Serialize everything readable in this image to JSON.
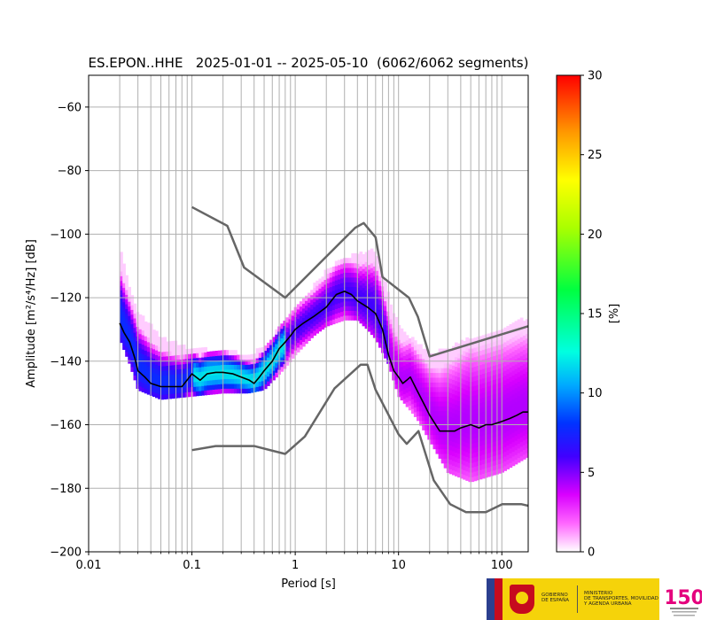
{
  "chart_data": {
    "type": "heatmap",
    "title": "ES.EPON..HHE   2025-01-01 -- 2025-05-10  (6062/6062 segments)",
    "xlabel": "Period [s]",
    "ylabel": "Amplitude [m²/s⁴/Hz] [dB]",
    "xscale": "log",
    "xlim": [
      0.01,
      180
    ],
    "ylim": [
      -200,
      -50
    ],
    "x_ticks": [
      0.01,
      0.1,
      1,
      10,
      100
    ],
    "x_tick_labels": [
      "0.01",
      "0.1",
      "1",
      "10",
      "100"
    ],
    "y_ticks": [
      -200,
      -180,
      -160,
      -140,
      -120,
      -100,
      -80,
      -60
    ],
    "y_tick_labels": [
      "−200",
      "−180",
      "−160",
      "−140",
      "−120",
      "−100",
      "−80",
      "−60"
    ],
    "grid": true,
    "colorbar": {
      "label": "[%]",
      "range": [
        0,
        30
      ],
      "ticks": [
        0,
        5,
        10,
        15,
        20,
        25,
        30
      ],
      "tick_labels": [
        "0",
        "5",
        "10",
        "15",
        "20",
        "25",
        "30"
      ],
      "colormap": "pqlx"
    },
    "mode_curve": {
      "name": "mode",
      "x": [
        0.02,
        0.022,
        0.025,
        0.028,
        0.03,
        0.035,
        0.04,
        0.05,
        0.06,
        0.08,
        0.1,
        0.12,
        0.14,
        0.17,
        0.2,
        0.25,
        0.3,
        0.36,
        0.4,
        0.45,
        0.5,
        0.6,
        0.7,
        0.8,
        0.9,
        1.0,
        1.2,
        1.5,
        2.0,
        2.5,
        3.0,
        3.5,
        4.0,
        5.0,
        6.0,
        7.0,
        8.0,
        9.0,
        10.0,
        11.0,
        12.0,
        13.0,
        15.0,
        18.0,
        20.0,
        25.0,
        30.0,
        35.0,
        40.0,
        50.0,
        60.0,
        70.0,
        80.0,
        100.0,
        120.0,
        140.0,
        160.0,
        180.0
      ],
      "y": [
        -128,
        -131,
        -134,
        -139,
        -143,
        -145,
        -147,
        -148,
        -148,
        -148,
        -144,
        -146,
        -144,
        -143.5,
        -143.5,
        -144,
        -145,
        -146,
        -147,
        -145,
        -143,
        -140,
        -136,
        -134,
        -132,
        -130,
        -128,
        -126,
        -123,
        -119,
        -118,
        -119,
        -121,
        -123,
        -125,
        -130,
        -138,
        -143,
        -145,
        -147,
        -146,
        -145,
        -149,
        -154,
        -157,
        -162,
        -162,
        -162,
        -161,
        -160,
        -161,
        -160,
        -160,
        -159,
        -158,
        -157,
        -156,
        -156
      ]
    },
    "reference_models": [
      {
        "x": [
          0.1,
          0.22,
          0.32,
          0.8,
          3.8,
          4.6,
          6.0,
          7.0,
          12.6,
          15.4,
          20.0,
          180.0
        ],
        "y": [
          -91.5,
          -97.4,
          -110.5,
          -120.0,
          -98.0,
          -96.5,
          -101.0,
          -113.5,
          -120.0,
          -126.0,
          -138.5,
          -129.0
        ]
      },
      {
        "x": [
          0.1,
          0.17,
          0.4,
          0.8,
          1.24,
          2.4,
          4.3,
          5.0,
          6.0,
          10.0,
          12.0,
          15.6,
          21.9,
          31.6,
          45.0,
          70.0,
          101.0,
          154.0,
          180.0
        ],
        "y": [
          -168.0,
          -166.7,
          -166.7,
          -169.2,
          -163.7,
          -148.6,
          -141.1,
          -141.1,
          -149.0,
          -163.0,
          -166.0,
          -162.0,
          -177.5,
          -185.0,
          -187.5,
          -187.5,
          -185.0,
          -185.0,
          -185.5
        ]
      }
    ],
    "density_band": {
      "description": "probability density band of PSD values",
      "x": [
        0.02,
        0.025,
        0.03,
        0.05,
        0.1,
        0.2,
        0.35,
        0.5,
        0.8,
        1.0,
        1.5,
        2.0,
        3.0,
        4.0,
        5.0,
        6.0,
        8.0,
        10.0,
        15.0,
        20.0,
        30.0,
        50.0,
        100.0,
        180.0
      ],
      "upper": [
        -105,
        -118,
        -125,
        -133,
        -137,
        -137,
        -139,
        -136,
        -128,
        -124,
        -117,
        -112,
        -108,
        -107,
        -106,
        -106,
        -120,
        -130,
        -135,
        -138,
        -137,
        -133,
        -130,
        -127
      ],
      "lower": [
        -133,
        -141,
        -149,
        -152,
        -151,
        -150,
        -150,
        -149,
        -142,
        -138,
        -132,
        -129,
        -127,
        -127,
        -130,
        -133,
        -141,
        -151,
        -158,
        -165,
        -175,
        -178,
        -175,
        -170
      ]
    }
  },
  "branding": {
    "gov_line1": "GOBIERNO",
    "gov_line2": "DE ESPAÑA",
    "ministry_line1": "MINISTERIO",
    "ministry_line2": "DE TRANSPORTES, MOVILIDAD",
    "ministry_line3": "Y AGENDA URBANA",
    "ign_mark": "150"
  }
}
